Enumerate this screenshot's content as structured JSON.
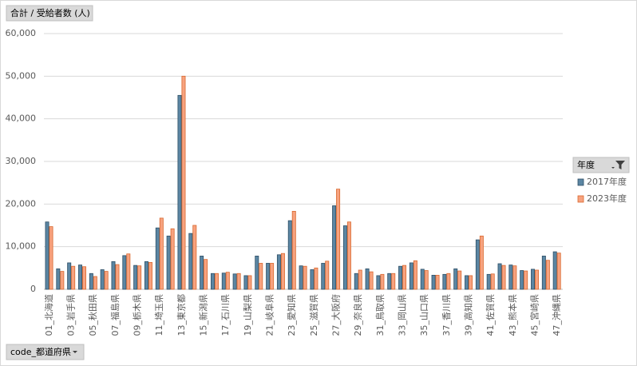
{
  "chart_data": {
    "type": "bar",
    "value_field": "合計 / 受給者数 (人)",
    "axis_field": "code_都道府県",
    "legend_title": "年度",
    "categories": [
      "01_北海道",
      null,
      "03_岩手県",
      null,
      "05_秋田県",
      null,
      "07_福島県",
      null,
      "09_栃木県",
      null,
      "11_埼玉県",
      null,
      "13_東京都",
      null,
      "15_新潟県",
      null,
      "17_石川県",
      null,
      "19_山梨県",
      null,
      "21_岐阜県",
      null,
      "23_愛知県",
      null,
      "25_滋賀県",
      null,
      "27_大阪府",
      null,
      "29_奈良県",
      null,
      "31_鳥取県",
      null,
      "33_岡山県",
      null,
      "35_山口県",
      null,
      "37_香川県",
      null,
      "39_高知県",
      null,
      "41_佐賀県",
      null,
      "43_熊本県",
      null,
      "45_宮崎県",
      null,
      "47_沖縄県"
    ],
    "series": [
      {
        "name": "2017年度",
        "color": "#5b86a3",
        "edge": "#2f4f66",
        "values": [
          15800,
          4800,
          6200,
          5700,
          3700,
          4600,
          6500,
          7900,
          5600,
          6500,
          14400,
          12500,
          45500,
          13100,
          7800,
          3700,
          3800,
          3600,
          3200,
          7800,
          6100,
          8100,
          16100,
          5500,
          4600,
          6100,
          19600,
          14900,
          3700,
          4800,
          3200,
          3700,
          5400,
          6200,
          4700,
          3300,
          3500,
          4800,
          3200,
          11600,
          3500,
          6000,
          5700,
          4400,
          4700,
          7800,
          8800
        ]
      },
      {
        "name": "2023年度",
        "color": "#f7a27f",
        "edge": "#d9692f",
        "values": [
          14700,
          4200,
          5400,
          5300,
          3000,
          4200,
          5800,
          8300,
          5500,
          6300,
          16700,
          14200,
          50000,
          15000,
          7000,
          3700,
          4000,
          3700,
          3200,
          6100,
          6100,
          8400,
          18300,
          5400,
          5000,
          6600,
          23500,
          15800,
          4500,
          4100,
          3500,
          3700,
          5600,
          6700,
          4400,
          3300,
          3700,
          4300,
          3200,
          12500,
          3600,
          5600,
          5500,
          4300,
          4500,
          6800,
          8500
        ]
      }
    ],
    "ylim": [
      0,
      60000
    ],
    "yticks": [
      0,
      {
        "value": 10000,
        "label": "10,000"
      },
      {
        "value": 20000,
        "label": "20,000"
      },
      {
        "value": 30000,
        "label": "30,000"
      },
      {
        "value": 40000,
        "label": "40,000"
      },
      {
        "value": 50000,
        "label": "50,000"
      },
      {
        "value": 60000,
        "label": "60,000"
      }
    ],
    "grid": true
  }
}
